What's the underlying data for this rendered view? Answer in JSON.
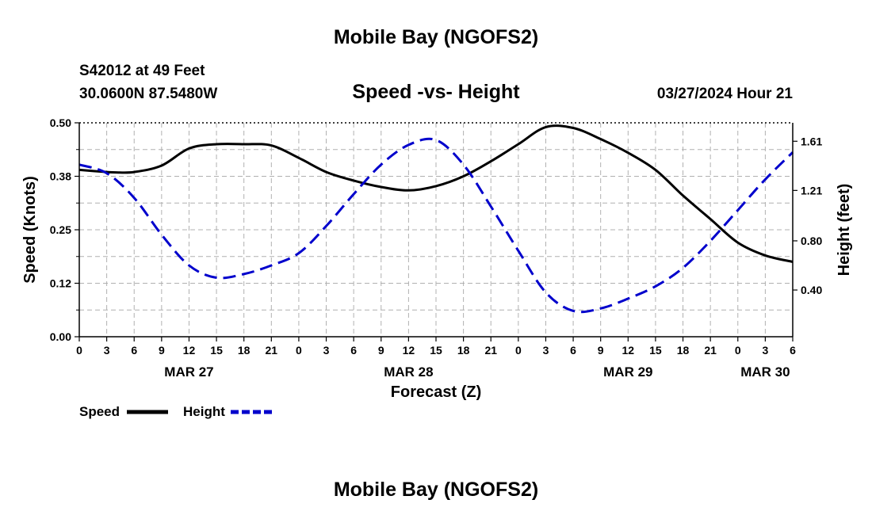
{
  "page": {
    "top_title": "Mobile Bay (NGOFS2)",
    "bottom_title": "Mobile Bay (NGOFS2)",
    "station_line1": "S42012 at 49 Feet",
    "station_line2": "30.0600N  87.5480W",
    "datetime": "03/27/2024 Hour 21"
  },
  "chart_data": {
    "type": "line",
    "title": "Speed -vs- Height",
    "xlabel": "Forecast (Z)",
    "ylabel_left": "Speed (Knots)",
    "ylabel_right": "Height (feet)",
    "x_unit": "hours from 2024-03-27 00Z",
    "xlim": [
      0,
      78
    ],
    "x_ticks": [
      0,
      3,
      6,
      9,
      12,
      15,
      18,
      21,
      24,
      27,
      30,
      33,
      36,
      39,
      42,
      45,
      48,
      51,
      54,
      57,
      60,
      63,
      66,
      69,
      72,
      75,
      78
    ],
    "x_tick_labels": [
      "0",
      "3",
      "6",
      "9",
      "12",
      "15",
      "18",
      "21",
      "0",
      "3",
      "6",
      "9",
      "12",
      "15",
      "18",
      "21",
      "0",
      "3",
      "6",
      "9",
      "12",
      "15",
      "18",
      "21",
      "0",
      "3",
      "6"
    ],
    "day_labels": [
      {
        "x": 12,
        "label": "MAR 27"
      },
      {
        "x": 36,
        "label": "MAR 28"
      },
      {
        "x": 60,
        "label": "MAR 29"
      },
      {
        "x": 75,
        "label": "MAR 30"
      }
    ],
    "y_left": {
      "lim": [
        0,
        0.5
      ],
      "ticks": [
        0,
        0.125,
        0.25,
        0.375,
        0.5
      ],
      "tick_labels": [
        "0.00",
        "0.12",
        "0.25",
        "0.38",
        "0.50"
      ]
    },
    "y_right": {
      "lim": [
        0.02,
        1.76
      ],
      "ticks": [
        0.4,
        0.8,
        1.21,
        1.61
      ],
      "tick_labels": [
        "0.40",
        "0.80",
        "1.21",
        "1.61"
      ]
    },
    "grid": true,
    "legend_position": "bottom-left",
    "series": [
      {
        "name": "Speed",
        "axis": "left",
        "color": "#000000",
        "style": "solid",
        "x": [
          0,
          3,
          4,
          6,
          9,
          12,
          15,
          18,
          21,
          24,
          27,
          30,
          33,
          36,
          39,
          42,
          45,
          48,
          51,
          54,
          57,
          60,
          63,
          66,
          69,
          72,
          75,
          78
        ],
        "y": [
          0.39,
          0.385,
          0.384,
          0.385,
          0.4,
          0.44,
          0.45,
          0.45,
          0.447,
          0.418,
          0.385,
          0.365,
          0.35,
          0.342,
          0.352,
          0.375,
          0.41,
          0.45,
          0.49,
          0.488,
          0.462,
          0.43,
          0.39,
          0.33,
          0.275,
          0.22,
          0.19,
          0.175
        ]
      },
      {
        "name": "Height",
        "axis": "right",
        "color": "#0000cc",
        "style": "dashed",
        "x": [
          0,
          3,
          6,
          9,
          12,
          15,
          18,
          21,
          24,
          27,
          30,
          33,
          36,
          39,
          42,
          45,
          48,
          51,
          54,
          57,
          60,
          63,
          66,
          69,
          72,
          75,
          78
        ],
        "y": [
          1.42,
          1.35,
          1.15,
          0.85,
          0.6,
          0.5,
          0.53,
          0.6,
          0.7,
          0.92,
          1.18,
          1.42,
          1.58,
          1.62,
          1.42,
          1.08,
          0.72,
          0.38,
          0.23,
          0.25,
          0.33,
          0.43,
          0.58,
          0.8,
          1.05,
          1.3,
          1.52
        ]
      }
    ]
  },
  "legend": {
    "speed_label": "Speed",
    "height_label": "Height"
  }
}
